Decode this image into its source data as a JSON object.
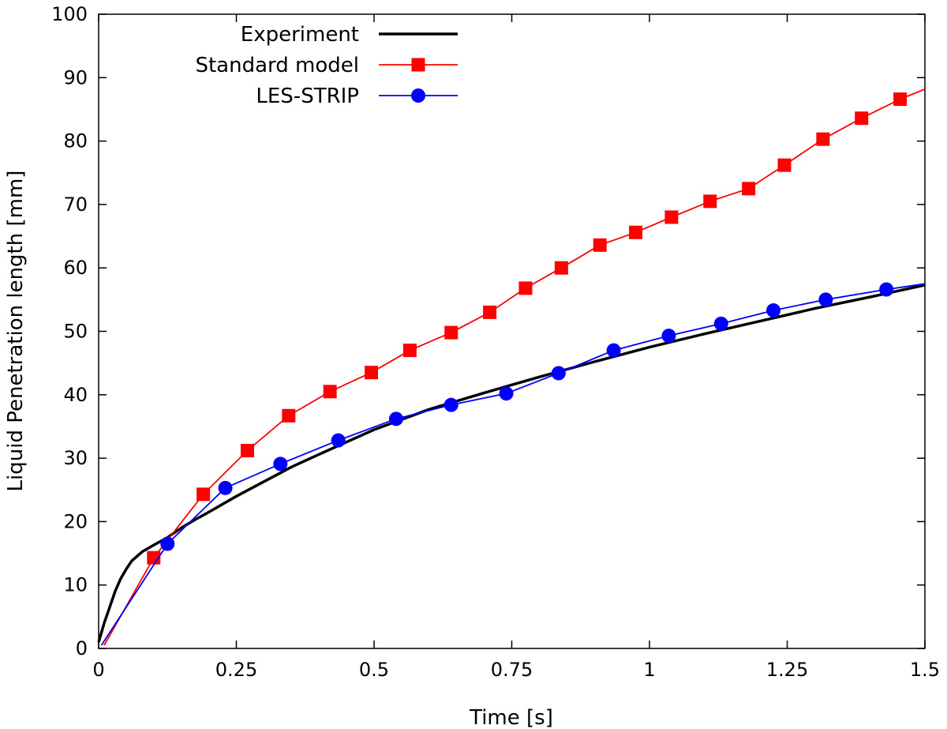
{
  "chart_data": {
    "type": "line",
    "title": "",
    "xlabel": "Time [s]",
    "ylabel": "Liquid Penetration length [mm]",
    "xlim": [
      0,
      1.5
    ],
    "ylim": [
      0,
      100
    ],
    "xticks": [
      0,
      0.25,
      0.5,
      0.75,
      1,
      1.25,
      1.5
    ],
    "xtick_labels": [
      "0",
      "0.25",
      "0.5",
      "0.75",
      "1",
      "1.25",
      "1.5"
    ],
    "yticks": [
      0,
      10,
      20,
      30,
      40,
      50,
      60,
      70,
      80,
      90,
      100
    ],
    "ytick_labels": [
      "0",
      "10",
      "20",
      "30",
      "40",
      "50",
      "60",
      "70",
      "80",
      "90",
      "100"
    ],
    "grid": false,
    "legend_position": "top-left",
    "series": [
      {
        "name": "Experiment",
        "color": "#000000",
        "marker": "none",
        "x": [
          0,
          0.01,
          0.02,
          0.03,
          0.04,
          0.05,
          0.06,
          0.08,
          0.1,
          0.125,
          0.15,
          0.175,
          0.2,
          0.25,
          0.3,
          0.35,
          0.4,
          0.5,
          0.6,
          0.7,
          0.8,
          0.9,
          1.0,
          1.1,
          1.2,
          1.3,
          1.4,
          1.5
        ],
        "y": [
          1,
          4,
          6.5,
          9,
          11,
          12.5,
          13.8,
          15.3,
          16.3,
          17.5,
          19,
          20.3,
          21.5,
          24,
          26.3,
          28.6,
          30.6,
          34.5,
          37.7,
          40.3,
          42.8,
          45.2,
          47.5,
          49.6,
          51.6,
          53.6,
          55.4,
          57.3
        ]
      },
      {
        "name": "Standard model",
        "color": "#ff0000",
        "marker": "square",
        "x": [
          0.01,
          0.1,
          0.19,
          0.27,
          0.345,
          0.42,
          0.495,
          0.565,
          0.64,
          0.71,
          0.775,
          0.84,
          0.91,
          0.975,
          1.04,
          1.11,
          1.18,
          1.245,
          1.315,
          1.385,
          1.455,
          1.5
        ],
        "y": [
          0.5,
          14.3,
          24.3,
          31.2,
          36.7,
          40.5,
          43.5,
          47,
          49.8,
          53,
          56.8,
          60,
          63.6,
          65.6,
          68,
          70.5,
          72.5,
          76.2,
          80.3,
          83.6,
          86.6,
          88.2
        ],
        "markers_x": [
          0.1,
          0.19,
          0.27,
          0.345,
          0.42,
          0.495,
          0.565,
          0.64,
          0.71,
          0.775,
          0.84,
          0.91,
          0.975,
          1.04,
          1.11,
          1.18,
          1.245,
          1.315,
          1.385,
          1.455
        ],
        "markers_y": [
          14.3,
          24.3,
          31.2,
          36.7,
          40.5,
          43.5,
          47,
          49.8,
          53,
          56.8,
          60,
          63.6,
          65.6,
          68,
          70.5,
          72.5,
          76.2,
          80.3,
          83.6,
          86.6
        ]
      },
      {
        "name": "LES-STRIP",
        "color": "#0000ff",
        "marker": "circle",
        "x": [
          0.005,
          0.125,
          0.23,
          0.33,
          0.435,
          0.54,
          0.64,
          0.74,
          0.835,
          0.935,
          1.035,
          1.13,
          1.225,
          1.32,
          1.43,
          1.5
        ],
        "y": [
          0.5,
          16.5,
          25.3,
          29.1,
          32.8,
          36.2,
          38.4,
          40.2,
          43.4,
          47,
          49.3,
          51.2,
          53.3,
          55,
          56.6,
          57.5
        ],
        "markers_x": [
          0.125,
          0.23,
          0.33,
          0.435,
          0.54,
          0.64,
          0.74,
          0.835,
          0.935,
          1.035,
          1.13,
          1.225,
          1.32,
          1.43
        ],
        "markers_y": [
          16.5,
          25.3,
          29.1,
          32.8,
          36.2,
          38.4,
          40.2,
          43.4,
          47,
          49.3,
          51.2,
          53.3,
          55,
          56.6
        ]
      }
    ]
  }
}
